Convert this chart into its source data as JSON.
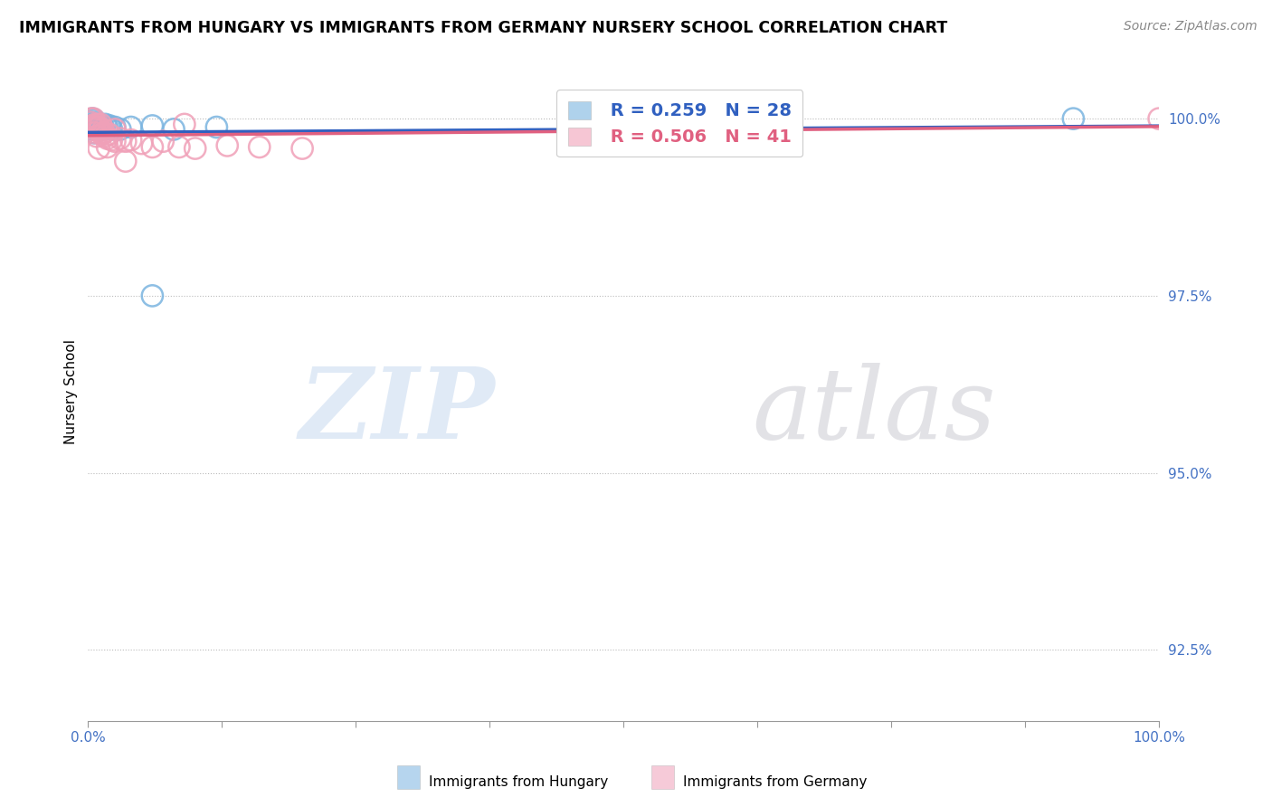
{
  "title": "IMMIGRANTS FROM HUNGARY VS IMMIGRANTS FROM GERMANY NURSERY SCHOOL CORRELATION CHART",
  "source": "Source: ZipAtlas.com",
  "ylabel": "Nursery School",
  "xlim": [
    0.0,
    1.0
  ],
  "ylim": [
    0.915,
    1.008
  ],
  "yticks": [
    0.925,
    0.95,
    0.975,
    1.0
  ],
  "ytick_labels": [
    "92.5%",
    "95.0%",
    "97.5%",
    "100.0%"
  ],
  "R_hungary": 0.259,
  "N_hungary": 28,
  "R_germany": 0.506,
  "N_germany": 41,
  "hungary_color": "#7ab4e0",
  "germany_color": "#f0a0b8",
  "hungary_line_color": "#3060c0",
  "germany_line_color": "#e06080",
  "hungary_x": [
    0.002,
    0.003,
    0.004,
    0.004,
    0.005,
    0.005,
    0.006,
    0.006,
    0.007,
    0.008,
    0.009,
    0.01,
    0.011,
    0.012,
    0.013,
    0.014,
    0.016,
    0.018,
    0.02,
    0.022,
    0.025,
    0.03,
    0.04,
    0.06,
    0.08,
    0.12,
    0.06,
    0.92
  ],
  "hungary_y": [
    0.9995,
    0.999,
    0.9985,
    1.0,
    0.9992,
    0.9988,
    0.9998,
    0.998,
    0.9995,
    0.999,
    0.9985,
    0.9988,
    0.9992,
    0.9985,
    0.999,
    0.9988,
    0.9992,
    0.9988,
    0.999,
    0.9985,
    0.9988,
    0.9985,
    0.9988,
    0.999,
    0.9985,
    0.9988,
    0.975,
    1.0
  ],
  "germany_x": [
    0.002,
    0.003,
    0.004,
    0.005,
    0.005,
    0.006,
    0.006,
    0.007,
    0.008,
    0.008,
    0.009,
    0.01,
    0.011,
    0.012,
    0.012,
    0.013,
    0.014,
    0.015,
    0.016,
    0.018,
    0.02,
    0.022,
    0.025,
    0.025,
    0.03,
    0.035,
    0.04,
    0.05,
    0.06,
    0.07,
    0.085,
    0.1,
    0.13,
    0.16,
    0.2,
    0.09,
    0.035,
    0.018,
    0.01,
    0.65,
    1.0
  ],
  "germany_y": [
    0.9995,
    1.0,
    0.999,
    0.9988,
    1.0,
    0.9992,
    0.9985,
    0.998,
    0.9988,
    0.9975,
    0.9992,
    0.9988,
    0.9985,
    0.9992,
    0.998,
    0.9978,
    0.9985,
    0.998,
    0.9975,
    0.9972,
    0.9978,
    0.997,
    0.9968,
    0.9985,
    0.9972,
    0.9968,
    0.997,
    0.9965,
    0.996,
    0.9968,
    0.996,
    0.9958,
    0.9962,
    0.996,
    0.9958,
    0.9992,
    0.994,
    0.996,
    0.9958,
    0.999,
    1.0
  ]
}
